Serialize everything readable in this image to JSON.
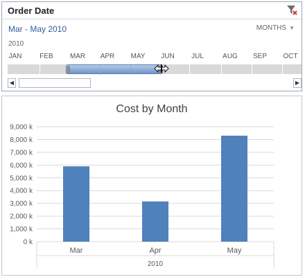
{
  "slicer": {
    "title": "Order Date",
    "range_label": "Mar - May 2010",
    "level_label": "MONTHS",
    "year": "2010",
    "months": [
      "JAN",
      "FEB",
      "MAR",
      "APR",
      "MAY",
      "JUN",
      "JUL",
      "AUG",
      "SEP",
      "OCT"
    ],
    "selected_months": [
      "MAR",
      "APR",
      "MAY"
    ],
    "scroll_left_glyph": "◀",
    "scroll_right_glyph": "▶",
    "icons": {
      "clear_filter": "funnel-clear-icon",
      "resize_cursor": "resize-horizontal-icon",
      "dropdown": "chevron-down-icon"
    },
    "colors": {
      "selection": "#7b9fd0",
      "accent_text": "#2f5d9a"
    }
  },
  "chart_data": {
    "type": "bar",
    "title": "Cost by Month",
    "categories": [
      "Mar",
      "Apr",
      "May"
    ],
    "group_label": "2010",
    "values": [
      5900,
      3150,
      8300
    ],
    "ylim": [
      0,
      9000
    ],
    "yticks": [
      0,
      1000,
      2000,
      3000,
      4000,
      5000,
      6000,
      7000,
      8000,
      9000
    ],
    "ytick_labels": [
      "0 k",
      "1,000 k",
      "2,000 k",
      "3,000 k",
      "4,000 k",
      "5,000 k",
      "6,000 k",
      "7,000 k",
      "8,000 k",
      "9,000 k"
    ],
    "grid": true,
    "bar_color": "#4f81bd"
  }
}
